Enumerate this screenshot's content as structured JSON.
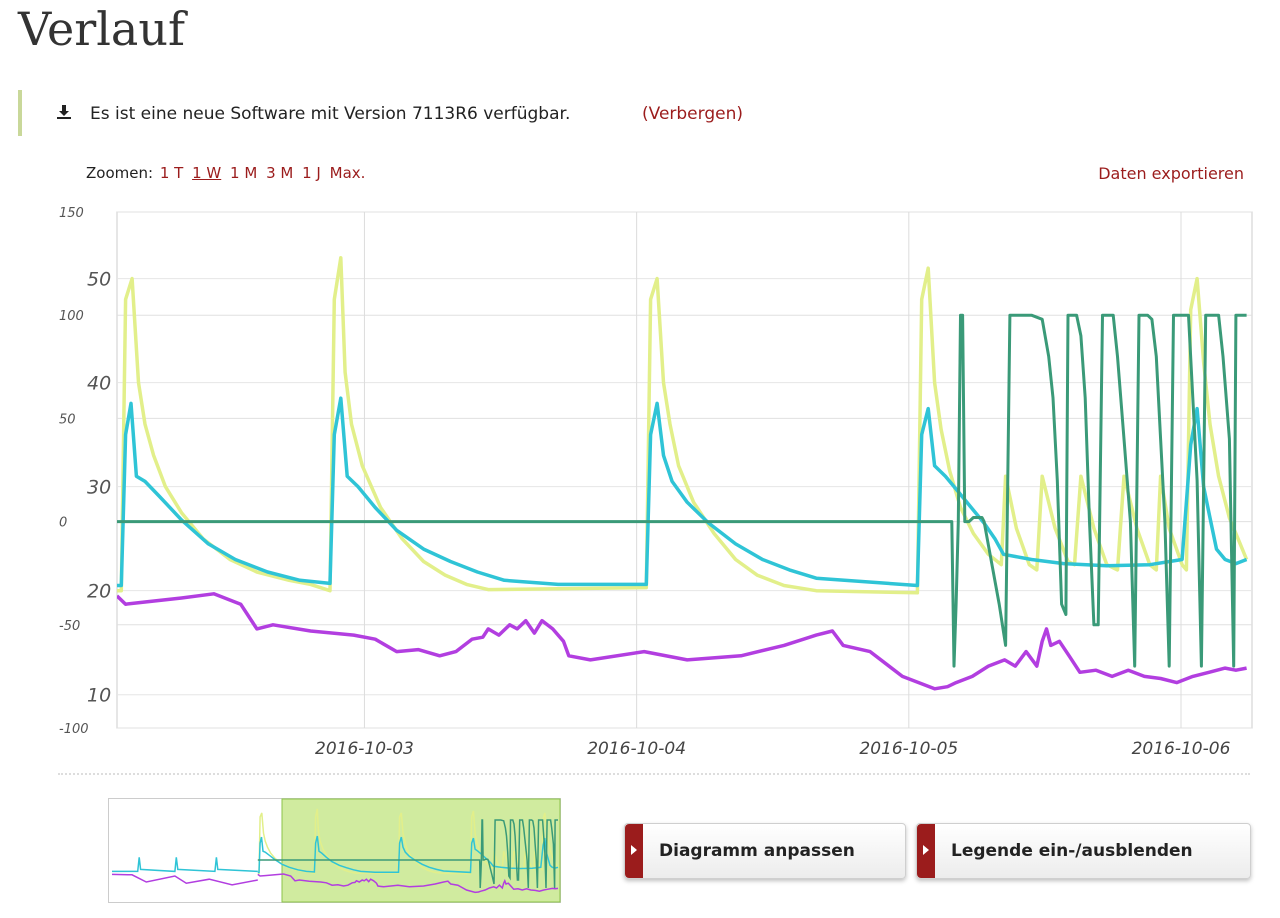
{
  "page": {
    "title": "Verlauf"
  },
  "notice": {
    "text": "Es ist eine neue Software mit Version 7113R6 verfügbar.",
    "hide_link": "(Verbergen)",
    "icon": "download-icon"
  },
  "zoom": {
    "label": "Zoomen:",
    "options": [
      "1 T",
      "1 W",
      "1 M",
      "3 M",
      "1 J",
      "Max."
    ],
    "active": "1 W"
  },
  "export_link": "Daten exportieren",
  "chart_data": {
    "type": "line",
    "x_ticks": [
      "2016-10-03",
      "2016-10-04",
      "2016-10-05",
      "2016-10-06"
    ],
    "x_range": [
      "2016-10-02 04:00",
      "2016-10-06 12:00"
    ],
    "y_axis_left": {
      "ticks": [
        150,
        100,
        50,
        0,
        -50,
        -100
      ],
      "range": [
        -100,
        150
      ]
    },
    "y_axis_right": {
      "ticks": [
        50,
        40,
        30,
        20,
        10
      ],
      "range": [
        6.8,
        56.4
      ]
    },
    "grid": true,
    "colors": [
      "#e2ef8a",
      "#2fc4d6",
      "#3a9a78",
      "#b23ee0"
    ],
    "series": [
      {
        "axis": "right",
        "color": "#e2ef8a",
        "points": [
          [
            0,
            20
          ],
          [
            0.04,
            20
          ],
          [
            0.08,
            48
          ],
          [
            0.14,
            50
          ],
          [
            0.2,
            40
          ],
          [
            0.26,
            36
          ],
          [
            0.34,
            33
          ],
          [
            0.45,
            30
          ],
          [
            0.6,
            27.5
          ],
          [
            0.8,
            25
          ],
          [
            1.05,
            23
          ],
          [
            1.3,
            21.8
          ],
          [
            1.6,
            21
          ],
          [
            1.8,
            20.6
          ],
          [
            1.98,
            20
          ],
          [
            2.02,
            48
          ],
          [
            2.08,
            52
          ],
          [
            2.12,
            41
          ],
          [
            2.18,
            36
          ],
          [
            2.28,
            32
          ],
          [
            2.45,
            28
          ],
          [
            2.65,
            25
          ],
          [
            2.85,
            22.8
          ],
          [
            3.05,
            21.5
          ],
          [
            3.25,
            20.6
          ],
          [
            3.45,
            20.1
          ],
          [
            4.92,
            20.3
          ],
          [
            4.96,
            48
          ],
          [
            5.02,
            50
          ],
          [
            5.08,
            40
          ],
          [
            5.14,
            36
          ],
          [
            5.22,
            32
          ],
          [
            5.36,
            28.5
          ],
          [
            5.55,
            25.5
          ],
          [
            5.75,
            23
          ],
          [
            5.95,
            21.5
          ],
          [
            6.2,
            20.5
          ],
          [
            6.5,
            20
          ],
          [
            7.44,
            19.8
          ],
          [
            7.48,
            48
          ],
          [
            7.54,
            51
          ],
          [
            7.6,
            40
          ],
          [
            7.66,
            35.5
          ],
          [
            7.74,
            31.5
          ],
          [
            7.84,
            28
          ],
          [
            7.96,
            25.5
          ],
          [
            8.1,
            23.5
          ],
          [
            8.22,
            22.5
          ],
          [
            8.26,
            31
          ],
          [
            8.36,
            26
          ],
          [
            8.48,
            22.5
          ],
          [
            8.55,
            22
          ],
          [
            8.6,
            31
          ],
          [
            8.72,
            26
          ],
          [
            8.84,
            22.8
          ],
          [
            8.9,
            22.5
          ],
          [
            8.96,
            31
          ],
          [
            9.08,
            26
          ],
          [
            9.2,
            22.5
          ],
          [
            9.3,
            22
          ],
          [
            9.36,
            31
          ],
          [
            9.48,
            26
          ],
          [
            9.6,
            22.5
          ],
          [
            9.66,
            22
          ],
          [
            9.7,
            31
          ],
          [
            9.78,
            26
          ],
          [
            9.9,
            22.5
          ],
          [
            9.94,
            22
          ],
          [
            9.98,
            47
          ],
          [
            10.04,
            50
          ],
          [
            10.1,
            42
          ],
          [
            10.16,
            36
          ],
          [
            10.24,
            31
          ],
          [
            10.34,
            27
          ],
          [
            10.44,
            24.5
          ],
          [
            10.5,
            23
          ]
        ]
      },
      {
        "axis": "right",
        "color": "#2fc4d6",
        "points": [
          [
            0,
            20.5
          ],
          [
            0.04,
            20.5
          ],
          [
            0.08,
            35
          ],
          [
            0.13,
            38
          ],
          [
            0.18,
            31
          ],
          [
            0.26,
            30.5
          ],
          [
            0.4,
            29
          ],
          [
            0.6,
            26.8
          ],
          [
            0.85,
            24.5
          ],
          [
            1.1,
            23
          ],
          [
            1.4,
            21.8
          ],
          [
            1.7,
            21
          ],
          [
            1.98,
            20.7
          ],
          [
            2.02,
            35
          ],
          [
            2.08,
            38.5
          ],
          [
            2.14,
            31
          ],
          [
            2.24,
            30
          ],
          [
            2.4,
            28
          ],
          [
            2.6,
            25.8
          ],
          [
            2.85,
            24
          ],
          [
            3.1,
            22.8
          ],
          [
            3.35,
            21.8
          ],
          [
            3.6,
            21
          ],
          [
            4.1,
            20.6
          ],
          [
            4.92,
            20.6
          ],
          [
            4.96,
            35
          ],
          [
            5.02,
            38
          ],
          [
            5.08,
            33
          ],
          [
            5.16,
            30.5
          ],
          [
            5.3,
            28.5
          ],
          [
            5.5,
            26.5
          ],
          [
            5.75,
            24.5
          ],
          [
            6,
            23
          ],
          [
            6.25,
            22
          ],
          [
            6.5,
            21.2
          ],
          [
            7.44,
            20.5
          ],
          [
            7.48,
            35
          ],
          [
            7.54,
            37.5
          ],
          [
            7.6,
            32
          ],
          [
            7.7,
            31
          ],
          [
            7.82,
            29.5
          ],
          [
            7.94,
            28
          ],
          [
            8.06,
            26.5
          ],
          [
            8.16,
            25
          ],
          [
            8.24,
            23.5
          ],
          [
            8.5,
            23
          ],
          [
            8.8,
            22.6
          ],
          [
            9.2,
            22.4
          ],
          [
            9.6,
            22.5
          ],
          [
            9.9,
            23
          ],
          [
            9.98,
            34
          ],
          [
            10.04,
            37.5
          ],
          [
            10.1,
            30
          ],
          [
            10.16,
            27
          ],
          [
            10.22,
            24
          ],
          [
            10.3,
            23
          ],
          [
            10.4,
            22.6
          ],
          [
            10.5,
            23
          ]
        ]
      },
      {
        "axis": "left",
        "color": "#3a9a78",
        "points": [
          [
            0,
            0
          ],
          [
            7.76,
            0
          ],
          [
            7.78,
            -70
          ],
          [
            7.8,
            -40
          ],
          [
            7.82,
            0
          ],
          [
            7.84,
            100
          ],
          [
            7.86,
            100
          ],
          [
            7.88,
            0
          ],
          [
            7.92,
            0
          ],
          [
            7.96,
            2
          ],
          [
            8.04,
            2
          ],
          [
            8.06,
            0
          ],
          [
            8.2,
            -40
          ],
          [
            8.26,
            -60
          ],
          [
            8.3,
            100
          ],
          [
            8.5,
            100
          ],
          [
            8.6,
            98
          ],
          [
            8.66,
            80
          ],
          [
            8.7,
            60
          ],
          [
            8.74,
            20
          ],
          [
            8.78,
            -40
          ],
          [
            8.82,
            -45
          ],
          [
            8.84,
            100
          ],
          [
            8.92,
            100
          ],
          [
            8.96,
            90
          ],
          [
            9,
            60
          ],
          [
            9.04,
            0
          ],
          [
            9.08,
            -50
          ],
          [
            9.12,
            -50
          ],
          [
            9.16,
            100
          ],
          [
            9.26,
            100
          ],
          [
            9.3,
            80
          ],
          [
            9.36,
            40
          ],
          [
            9.42,
            0
          ],
          [
            9.46,
            -70
          ],
          [
            9.5,
            100
          ],
          [
            9.58,
            100
          ],
          [
            9.62,
            98
          ],
          [
            9.66,
            80
          ],
          [
            9.7,
            40
          ],
          [
            9.74,
            0
          ],
          [
            9.78,
            -70
          ],
          [
            9.82,
            100
          ],
          [
            9.96,
            100
          ],
          [
            10,
            60
          ],
          [
            10.04,
            20
          ],
          [
            10.08,
            -70
          ],
          [
            10.12,
            100
          ],
          [
            10.24,
            100
          ],
          [
            10.28,
            80
          ],
          [
            10.34,
            40
          ],
          [
            10.38,
            -70
          ],
          [
            10.4,
            100
          ],
          [
            10.5,
            100
          ]
        ]
      },
      {
        "axis": "left",
        "color": "#b23ee0",
        "points": [
          [
            0,
            -36
          ],
          [
            0.08,
            -40
          ],
          [
            0.25,
            -39
          ],
          [
            0.6,
            -37
          ],
          [
            0.9,
            -35
          ],
          [
            1.15,
            -40
          ],
          [
            1.3,
            -52
          ],
          [
            1.45,
            -50
          ],
          [
            1.8,
            -53
          ],
          [
            2.2,
            -55
          ],
          [
            2.4,
            -57
          ],
          [
            2.6,
            -63
          ],
          [
            2.8,
            -62
          ],
          [
            3.0,
            -65
          ],
          [
            3.15,
            -63
          ],
          [
            3.3,
            -57
          ],
          [
            3.4,
            -56
          ],
          [
            3.45,
            -52
          ],
          [
            3.55,
            -55
          ],
          [
            3.65,
            -50
          ],
          [
            3.72,
            -52
          ],
          [
            3.8,
            -48
          ],
          [
            3.88,
            -54
          ],
          [
            3.95,
            -48
          ],
          [
            4.05,
            -52
          ],
          [
            4.15,
            -58
          ],
          [
            4.2,
            -65
          ],
          [
            4.4,
            -67
          ],
          [
            4.9,
            -63
          ],
          [
            5.3,
            -67
          ],
          [
            5.8,
            -65
          ],
          [
            6.2,
            -60
          ],
          [
            6.5,
            -55
          ],
          [
            6.65,
            -53
          ],
          [
            6.75,
            -60
          ],
          [
            7.0,
            -63
          ],
          [
            7.3,
            -75
          ],
          [
            7.6,
            -81
          ],
          [
            7.72,
            -80
          ],
          [
            7.8,
            -78
          ],
          [
            7.95,
            -75
          ],
          [
            8.1,
            -70
          ],
          [
            8.25,
            -67
          ],
          [
            8.35,
            -70
          ],
          [
            8.45,
            -63
          ],
          [
            8.55,
            -70
          ],
          [
            8.6,
            -58
          ],
          [
            8.64,
            -52
          ],
          [
            8.68,
            -60
          ],
          [
            8.76,
            -58
          ],
          [
            8.85,
            -65
          ],
          [
            8.95,
            -73
          ],
          [
            9.1,
            -72
          ],
          [
            9.25,
            -75
          ],
          [
            9.4,
            -72
          ],
          [
            9.55,
            -75
          ],
          [
            9.7,
            -76
          ],
          [
            9.85,
            -78
          ],
          [
            10.0,
            -75
          ],
          [
            10.15,
            -73
          ],
          [
            10.3,
            -71
          ],
          [
            10.4,
            -72
          ],
          [
            10.5,
            -71
          ]
        ]
      }
    ]
  },
  "navigator": {
    "colors": {
      "window": "#c8e88e",
      "window_border": "#8bc34a"
    }
  },
  "buttons": {
    "adjust": "Diagramm anpassen",
    "legend": "Legende ein-/ausblenden"
  }
}
